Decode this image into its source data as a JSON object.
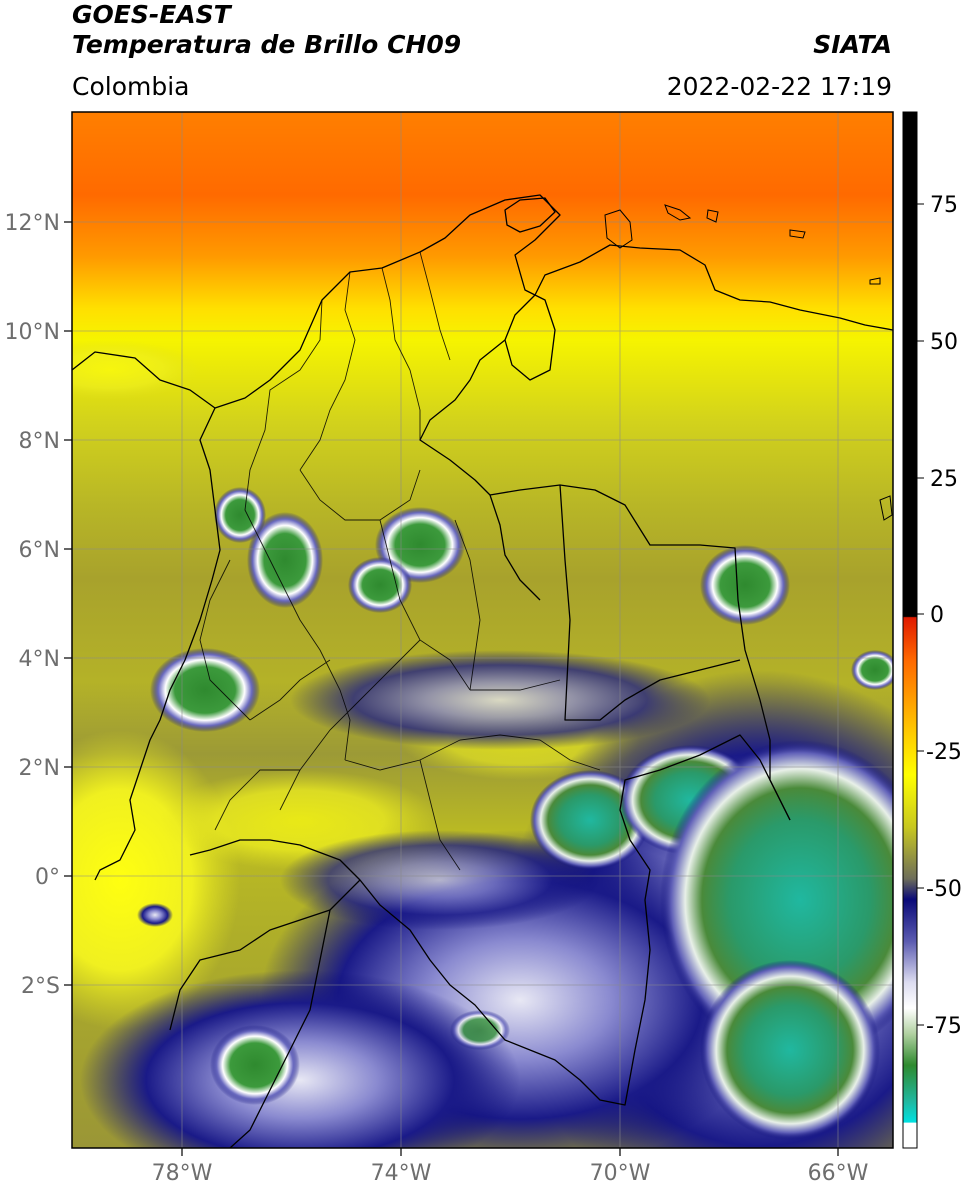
{
  "header": {
    "satellite": "GOES-EAST",
    "product": "Temperatura de Brillo CH09",
    "brand": "SIATA",
    "region": "Colombia",
    "datetime": "2022-02-22 17:19"
  },
  "map": {
    "lon_range": [
      -80,
      -65.1
    ],
    "lat_range": [
      -5,
      14
    ],
    "lon_ticks": [
      {
        "value": -78,
        "label": "78°W"
      },
      {
        "value": -74,
        "label": "74°W"
      },
      {
        "value": -70,
        "label": "70°W"
      },
      {
        "value": -66,
        "label": "66°W"
      }
    ],
    "lat_ticks": [
      {
        "value": 12,
        "label": "12°N"
      },
      {
        "value": 10,
        "label": "10°N"
      },
      {
        "value": 8,
        "label": "8°N"
      },
      {
        "value": 6,
        "label": "6°N"
      },
      {
        "value": 4,
        "label": "4°N"
      },
      {
        "value": 2,
        "label": "2°N"
      },
      {
        "value": 0,
        "label": "0°"
      },
      {
        "value": -2,
        "label": "2°S"
      }
    ],
    "gridlines": true
  },
  "colorbar": {
    "range": [
      -95,
      90
    ],
    "ticks": [
      {
        "value": 75,
        "label": "75"
      },
      {
        "value": 50,
        "label": "50"
      },
      {
        "value": 25,
        "label": "25"
      },
      {
        "value": 0,
        "label": "0"
      },
      {
        "value": -25,
        "label": "-25"
      },
      {
        "value": -50,
        "label": "-50"
      },
      {
        "value": -75,
        "label": "-75"
      }
    ],
    "colors": {
      "black": "#000000",
      "red": "#e01a00",
      "orange": "#ff8c00",
      "yellow": "#ffff00",
      "olive": "#c8c820",
      "gray": "#7d7d50",
      "navy": "#0a0a78",
      "white": "#ffffff",
      "green": "#2f8a2f",
      "teal": "#20b8a0",
      "cyan": "#00e0e0"
    }
  }
}
